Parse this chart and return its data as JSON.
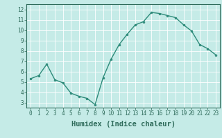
{
  "x": [
    0,
    1,
    2,
    3,
    4,
    5,
    6,
    7,
    8,
    9,
    10,
    11,
    12,
    13,
    14,
    15,
    16,
    17,
    18,
    19,
    20,
    21,
    22,
    23
  ],
  "y": [
    5.3,
    5.6,
    6.7,
    5.2,
    4.9,
    3.9,
    3.6,
    3.4,
    2.8,
    5.4,
    7.2,
    8.6,
    9.6,
    10.5,
    10.8,
    11.7,
    11.6,
    11.4,
    11.2,
    10.5,
    9.9,
    8.6,
    8.2,
    7.6
  ],
  "line_color": "#2e8b7a",
  "marker": "o",
  "markersize": 2.0,
  "linewidth": 1.0,
  "bg_color": "#c5ebe7",
  "grid_color": "#ffffff",
  "xlabel": "Humidex (Indice chaleur)",
  "ylabel": "",
  "xlim": [
    -0.5,
    23.5
  ],
  "ylim": [
    2.5,
    12.5
  ],
  "yticks": [
    3,
    4,
    5,
    6,
    7,
    8,
    9,
    10,
    11,
    12
  ],
  "xticks": [
    0,
    1,
    2,
    3,
    4,
    5,
    6,
    7,
    8,
    9,
    10,
    11,
    12,
    13,
    14,
    15,
    16,
    17,
    18,
    19,
    20,
    21,
    22,
    23
  ],
  "tick_label_fontsize": 5.5,
  "xlabel_fontsize": 7.5,
  "tick_color": "#2e6b5a",
  "axis_color": "#2e6b5a",
  "spine_color": "#2e6b5a"
}
